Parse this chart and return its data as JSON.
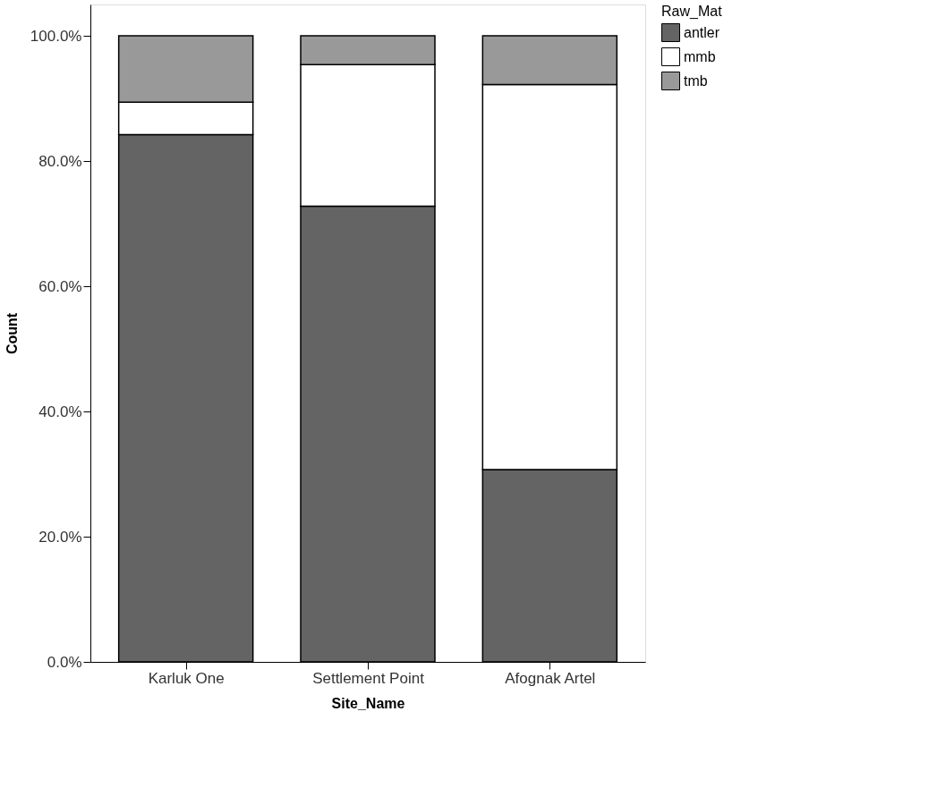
{
  "chart_data": {
    "type": "bar",
    "stacked": true,
    "xlabel": "Site_Name",
    "ylabel": "Count",
    "legend_title": "Raw_Mat",
    "legend": "top right",
    "categories": [
      "Karluk One",
      "Settlement Point",
      "Afognak Artel"
    ],
    "series": [
      {
        "name": "antler",
        "color": "#646464",
        "values": [
          84.2,
          72.8,
          30.7
        ]
      },
      {
        "name": "mmb",
        "color": "#ffffff",
        "values": [
          5.2,
          22.6,
          61.5
        ]
      },
      {
        "name": "tmb",
        "color": "#999999",
        "values": [
          10.6,
          4.6,
          7.8
        ]
      }
    ],
    "ylim": [
      0,
      105
    ],
    "yticks": [
      {
        "value": 0,
        "label": "0.0%"
      },
      {
        "value": 20,
        "label": "20.0%"
      },
      {
        "value": 40,
        "label": "40.0%"
      },
      {
        "value": 60,
        "label": "60.0%"
      },
      {
        "value": 80,
        "label": "80.0%"
      },
      {
        "value": 100,
        "label": "100.0%"
      }
    ],
    "grid": false
  }
}
